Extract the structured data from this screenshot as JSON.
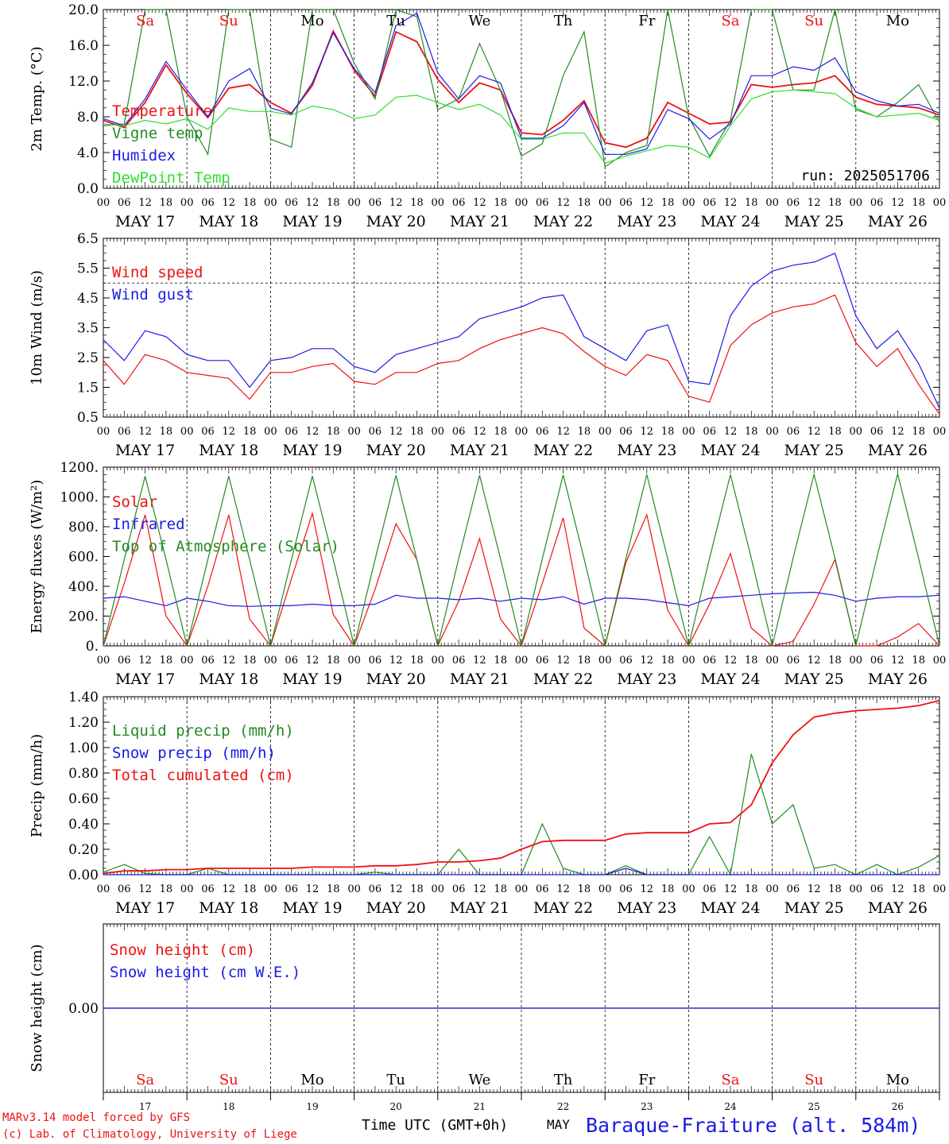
{
  "colors": {
    "red": "#ee1111",
    "dark_green": "#228b22",
    "blue": "#1a1ae6",
    "light_green": "#33dd33",
    "black": "#000000"
  },
  "run_label": "run: 2025051706",
  "hour_ticks": [
    "00",
    "06",
    "12",
    "18"
  ],
  "hour_final": "00",
  "dates": [
    "MAY 17",
    "MAY 18",
    "MAY 19",
    "MAY 20",
    "MAY 21",
    "MAY 22",
    "MAY 23",
    "MAY 24",
    "MAY 25",
    "MAY 26"
  ],
  "weekdays": [
    {
      "label": "Sa",
      "weekend": true
    },
    {
      "label": "Su",
      "weekend": true
    },
    {
      "label": "Mo",
      "weekend": false
    },
    {
      "label": "Tu",
      "weekend": false
    },
    {
      "label": "We",
      "weekend": false
    },
    {
      "label": "Th",
      "weekend": false
    },
    {
      "label": "Fr",
      "weekend": false
    },
    {
      "label": "Sa",
      "weekend": true
    },
    {
      "label": "Su",
      "weekend": true
    },
    {
      "label": "Mo",
      "weekend": false
    }
  ],
  "day_numbers": [
    "17",
    "18",
    "19",
    "20",
    "21",
    "22",
    "23",
    "24",
    "25",
    "26"
  ],
  "footer": {
    "model_line": "MARv3.14 model forced by GFS",
    "copyright_line": "(c) Lab. of Climatology, University of Liege",
    "time_label": "Time UTC (GMT+0h)",
    "month_label": "MAY",
    "station": "Baraque-Fraiture (alt. 584m)"
  },
  "chart_data": [
    {
      "type": "line",
      "ylabel": "2m Temp. (°C)",
      "ylim": [
        0,
        20
      ],
      "y_ticks": [
        "0.0",
        "4.0",
        "8.0",
        "12.0",
        "16.0",
        "20.0"
      ],
      "x_hours": [
        0,
        6,
        12,
        18,
        24,
        30,
        36,
        42,
        48,
        54,
        60,
        66,
        72,
        78,
        84,
        90,
        96,
        102,
        108,
        114,
        120,
        126,
        132,
        138,
        144,
        150,
        156,
        162,
        168,
        174,
        180,
        186,
        192,
        198,
        204,
        210,
        216,
        222,
        228,
        234,
        240
      ],
      "series": [
        {
          "name": "Temperature",
          "color": "#ee1111",
          "values": [
            7.6,
            6.8,
            9.6,
            13.8,
            10.6,
            7.9,
            11.2,
            11.6,
            9.6,
            8.4,
            11.5,
            17.6,
            13.2,
            10.3,
            17.5,
            16.4,
            12.2,
            9.6,
            11.8,
            11.0,
            6.2,
            6.0,
            7.6,
            9.8,
            5.1,
            4.6,
            5.6,
            9.6,
            8.4,
            7.2,
            7.4,
            11.6,
            11.3,
            11.6,
            11.8,
            12.6,
            10.2,
            9.4,
            9.2,
            9.0,
            8.2
          ]
        },
        {
          "name": "Vigne temp",
          "color": "#228b22",
          "values": [
            7.0,
            7.2,
            20.0,
            20.0,
            8.0,
            3.8,
            20.0,
            20.0,
            5.5,
            4.6,
            20.0,
            20.0,
            14.0,
            10.0,
            20.0,
            19.2,
            8.8,
            10.0,
            16.2,
            11.0,
            3.6,
            5.0,
            12.6,
            17.5,
            2.4,
            4.0,
            4.8,
            20.0,
            8.0,
            3.6,
            7.6,
            20.0,
            20.0,
            11.0,
            11.0,
            20.0,
            8.8,
            8.0,
            9.6,
            11.6,
            7.4
          ]
        },
        {
          "name": "Humidex",
          "color": "#1a1ae6",
          "values": [
            7.8,
            7.0,
            10.0,
            14.2,
            11.0,
            8.0,
            12.0,
            13.4,
            9.0,
            8.3,
            11.8,
            17.4,
            13.4,
            10.7,
            18.2,
            19.6,
            12.9,
            10.0,
            12.6,
            11.8,
            5.6,
            5.6,
            7.0,
            9.6,
            3.8,
            3.8,
            4.4,
            8.8,
            7.8,
            5.5,
            7.2,
            12.6,
            12.6,
            13.6,
            13.2,
            14.6,
            10.8,
            9.8,
            9.2,
            9.4,
            8.4
          ]
        },
        {
          "name": "DewPoint Temp",
          "color": "#33dd33",
          "values": [
            7.2,
            7.0,
            7.6,
            7.2,
            7.8,
            6.6,
            9.0,
            8.6,
            8.6,
            8.2,
            9.2,
            8.8,
            7.8,
            8.2,
            10.2,
            10.4,
            9.6,
            8.8,
            9.4,
            8.2,
            5.5,
            5.5,
            6.2,
            6.2,
            2.8,
            3.6,
            4.2,
            4.8,
            4.6,
            3.4,
            7.0,
            10.0,
            10.8,
            11.0,
            10.8,
            10.6,
            9.0,
            8.0,
            8.2,
            8.4,
            7.6
          ]
        }
      ]
    },
    {
      "type": "line",
      "ylabel": "10m Wind (m/s)",
      "ylim": [
        0.5,
        6.5
      ],
      "y_ticks": [
        "0.5",
        "1.5",
        "2.5",
        "3.5",
        "4.5",
        "5.5",
        "6.5"
      ],
      "reference_line": 5.0,
      "x_hours": [
        0,
        6,
        12,
        18,
        24,
        30,
        36,
        42,
        48,
        54,
        60,
        66,
        72,
        78,
        84,
        90,
        96,
        102,
        108,
        114,
        120,
        126,
        132,
        138,
        144,
        150,
        156,
        162,
        168,
        174,
        180,
        186,
        192,
        198,
        204,
        210,
        216,
        222,
        228,
        234,
        240
      ],
      "series": [
        {
          "name": "Wind speed",
          "color": "#ee1111",
          "values": [
            2.4,
            1.6,
            2.6,
            2.4,
            2.0,
            1.9,
            1.8,
            1.1,
            2.0,
            2.0,
            2.2,
            2.3,
            1.7,
            1.6,
            2.0,
            2.0,
            2.3,
            2.4,
            2.8,
            3.1,
            3.3,
            3.5,
            3.3,
            2.7,
            2.2,
            1.9,
            2.6,
            2.4,
            1.2,
            1.0,
            2.9,
            3.6,
            4.0,
            4.2,
            4.3,
            4.6,
            3.0,
            2.2,
            2.8,
            1.6,
            0.6
          ]
        },
        {
          "name": "Wind gust",
          "color": "#1a1ae6",
          "values": [
            3.1,
            2.4,
            3.4,
            3.2,
            2.6,
            2.4,
            2.4,
            1.5,
            2.4,
            2.5,
            2.8,
            2.8,
            2.2,
            2.0,
            2.6,
            2.8,
            3.0,
            3.2,
            3.8,
            4.0,
            4.2,
            4.5,
            4.6,
            3.2,
            2.8,
            2.4,
            3.4,
            3.6,
            1.7,
            1.6,
            3.9,
            4.9,
            5.4,
            5.6,
            5.7,
            6.0,
            3.9,
            2.8,
            3.4,
            2.3,
            0.8
          ]
        }
      ]
    },
    {
      "type": "line",
      "ylabel": "Energy fluxes (W/m²)",
      "ylim": [
        0,
        1200
      ],
      "y_ticks": [
        "0.",
        "200.",
        "400.",
        "600.",
        "800.",
        "1000.",
        "1200."
      ],
      "x_hours": [
        0,
        6,
        12,
        18,
        24,
        30,
        36,
        42,
        48,
        54,
        60,
        66,
        72,
        78,
        84,
        90,
        96,
        102,
        108,
        114,
        120,
        126,
        132,
        138,
        144,
        150,
        156,
        162,
        168,
        174,
        180,
        186,
        192,
        198,
        204,
        210,
        216,
        222,
        228,
        234,
        240
      ],
      "series": [
        {
          "name": "Solar",
          "color": "#ee1111",
          "values": [
            0,
            420,
            880,
            200,
            0,
            400,
            880,
            180,
            0,
            450,
            890,
            210,
            0,
            380,
            820,
            580,
            0,
            300,
            720,
            180,
            0,
            420,
            860,
            120,
            0,
            560,
            880,
            240,
            0,
            280,
            620,
            120,
            0,
            30,
            280,
            580,
            0,
            0,
            60,
            150,
            0
          ]
        },
        {
          "name": "Infrared",
          "color": "#1a1ae6",
          "values": [
            320,
            330,
            300,
            270,
            320,
            300,
            270,
            265,
            270,
            270,
            280,
            270,
            270,
            280,
            340,
            320,
            320,
            310,
            320,
            300,
            320,
            310,
            330,
            280,
            320,
            320,
            310,
            290,
            270,
            320,
            330,
            340,
            350,
            355,
            360,
            340,
            300,
            320,
            330,
            330,
            340
          ]
        },
        {
          "name": "Top of Atmosphere (Solar)",
          "color": "#228b22",
          "values": [
            0,
            580,
            1140,
            580,
            0,
            580,
            1140,
            580,
            0,
            580,
            1140,
            580,
            0,
            580,
            1145,
            580,
            0,
            585,
            1145,
            585,
            0,
            585,
            1148,
            585,
            0,
            585,
            1150,
            585,
            0,
            588,
            1150,
            588,
            0,
            590,
            1152,
            590,
            0,
            590,
            1155,
            590,
            0
          ]
        }
      ]
    },
    {
      "type": "line",
      "ylabel": "Precip (mm/h)",
      "ylim": [
        0,
        1.4
      ],
      "y_ticks": [
        "0.00",
        "0.20",
        "0.40",
        "0.60",
        "0.80",
        "1.00",
        "1.20",
        "1.40"
      ],
      "x_hours": [
        0,
        6,
        12,
        18,
        24,
        30,
        36,
        42,
        48,
        54,
        60,
        66,
        72,
        78,
        84,
        90,
        96,
        102,
        108,
        114,
        120,
        126,
        132,
        138,
        144,
        150,
        156,
        162,
        168,
        174,
        180,
        186,
        192,
        198,
        204,
        210,
        216,
        222,
        228,
        234,
        240
      ],
      "series": [
        {
          "name": "Liquid precip (mm/h)",
          "color": "#228b22",
          "values": [
            0.02,
            0.08,
            0.01,
            0,
            0,
            0.05,
            0,
            0,
            0,
            0,
            0,
            0,
            0,
            0.02,
            0,
            0,
            0,
            0.2,
            0,
            0,
            0,
            0.4,
            0.05,
            0,
            0,
            0.07,
            0,
            0,
            0,
            0.3,
            0,
            0.95,
            0.4,
            0.55,
            0.05,
            0.08,
            0,
            0.08,
            0,
            0.06,
            0.15
          ]
        },
        {
          "name": "Snow precip (mm/h)",
          "color": "#1a1ae6",
          "values": [
            0,
            0,
            0,
            0,
            0,
            0,
            0,
            0,
            0,
            0,
            0,
            0,
            0,
            0,
            0,
            0,
            0,
            0,
            0,
            0,
            0,
            0,
            0,
            0,
            0,
            0.05,
            0,
            0,
            0,
            0,
            0,
            0,
            0,
            0,
            0,
            0,
            0,
            0,
            0,
            0,
            0
          ]
        },
        {
          "name": "Total cumulated (cm)",
          "color": "#ee1111",
          "values": [
            0.01,
            0.03,
            0.03,
            0.04,
            0.04,
            0.05,
            0.05,
            0.05,
            0.05,
            0.05,
            0.06,
            0.06,
            0.06,
            0.07,
            0.07,
            0.08,
            0.1,
            0.1,
            0.11,
            0.13,
            0.2,
            0.26,
            0.27,
            0.27,
            0.27,
            0.32,
            0.33,
            0.33,
            0.33,
            0.4,
            0.41,
            0.55,
            0.88,
            1.1,
            1.24,
            1.27,
            1.29,
            1.3,
            1.31,
            1.33,
            1.37
          ]
        }
      ]
    },
    {
      "type": "line",
      "ylabel": "Snow height (cm)",
      "ylim": [
        -1,
        1
      ],
      "y_ticks": [
        "0.00"
      ],
      "x_hours": [
        0,
        240
      ],
      "series": [
        {
          "name": "Snow height (cm)",
          "color": "#ee1111",
          "values": [
            0,
            0
          ]
        },
        {
          "name": "Snow height (cm W.E.)",
          "color": "#1a1ae6",
          "values": [
            0,
            0
          ]
        }
      ]
    }
  ]
}
